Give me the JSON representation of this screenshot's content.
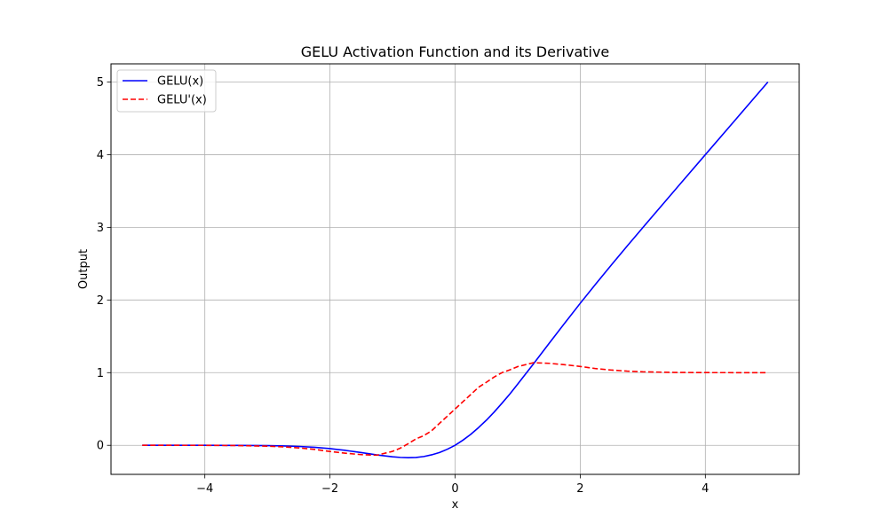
{
  "chart_data": {
    "type": "line",
    "title": "GELU Activation Function and its Derivative",
    "xlabel": "x",
    "ylabel": "Output",
    "xlim": [
      -5.5,
      5.5
    ],
    "ylim": [
      -0.4,
      5.25
    ],
    "xticks": [
      -4,
      -2,
      0,
      2,
      4
    ],
    "xtick_labels": [
      "−4",
      "−2",
      "0",
      "2",
      "4"
    ],
    "yticks": [
      0,
      1,
      2,
      3,
      4,
      5
    ],
    "ytick_labels": [
      "0",
      "1",
      "2",
      "3",
      "4",
      "5"
    ],
    "grid": true,
    "legend": "top-left",
    "series": [
      {
        "name": "GELU(x)",
        "color": "#0000ff",
        "style": "solid",
        "x": [
          -5,
          -4.5,
          -4,
          -3.5,
          -3,
          -2.75,
          -2.5,
          -2.25,
          -2,
          -1.75,
          -1.5,
          -1.25,
          -1,
          -0.875,
          -0.75,
          -0.625,
          -0.5,
          -0.375,
          -0.25,
          -0.125,
          0,
          0.125,
          0.25,
          0.375,
          0.5,
          0.625,
          0.75,
          0.875,
          1,
          1.25,
          1.5,
          1.75,
          2,
          2.25,
          2.5,
          2.75,
          3,
          3.5,
          4,
          4.5,
          5
        ],
        "y": [
          0,
          0,
          -0.0001,
          -0.0008,
          -0.004,
          -0.0082,
          -0.0155,
          -0.0275,
          -0.0455,
          -0.0703,
          -0.1002,
          -0.132,
          -0.1588,
          -0.1665,
          -0.17,
          -0.1673,
          -0.1543,
          -0.1311,
          -0.0995,
          -0.0545,
          0,
          0.0705,
          0.1505,
          0.2439,
          0.3457,
          0.4577,
          0.58,
          0.7063,
          0.8412,
          1.118,
          1.3998,
          1.6796,
          1.9545,
          2.2225,
          2.4845,
          2.7418,
          2.996,
          3.4992,
          3.9999,
          4.5,
          5
        ]
      },
      {
        "name": "GELU'(x)",
        "color": "#ff0000",
        "style": "dashed",
        "x": [
          -5,
          -4.5,
          -4,
          -3.5,
          -3,
          -2.75,
          -2.5,
          -2.25,
          -2,
          -1.75,
          -1.5,
          -1.25,
          -1,
          -0.875,
          -0.75,
          -0.625,
          -0.5,
          -0.375,
          -0.25,
          -0.125,
          0,
          0.125,
          0.25,
          0.375,
          0.5,
          0.625,
          0.75,
          0.875,
          1,
          1.25,
          1.5,
          1.75,
          2,
          2.25,
          2.5,
          2.75,
          3,
          3.5,
          4,
          4.5,
          5
        ],
        "y": [
          0,
          -0.0001,
          -0.0005,
          -0.003,
          -0.0119,
          -0.0213,
          -0.0356,
          -0.0555,
          -0.0853,
          -0.1089,
          -0.1286,
          -0.1362,
          -0.0833,
          -0.039,
          0.0221,
          0.0881,
          0.1325,
          0.2007,
          0.3017,
          0.4002,
          0.5,
          0.5998,
          0.6983,
          0.7993,
          0.8675,
          0.9403,
          1.0,
          1.039,
          1.0833,
          1.1362,
          1.1286,
          1.1089,
          1.0853,
          1.0555,
          1.0356,
          1.0213,
          1.0119,
          1.003,
          1.0005,
          1.0001,
          1.0
        ]
      }
    ]
  }
}
